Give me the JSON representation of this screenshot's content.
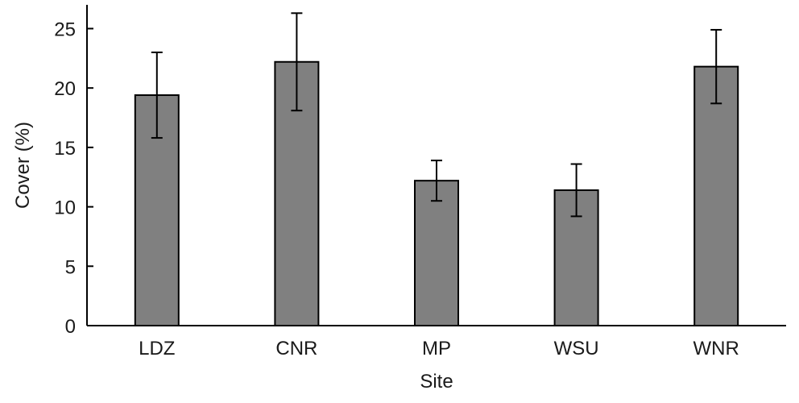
{
  "chart_data": {
    "type": "bar",
    "title": "",
    "xlabel": "Site",
    "ylabel": "Cover (%)",
    "categories": [
      "LDZ",
      "CNR",
      "MP",
      "WSU",
      "WNR"
    ],
    "values": [
      19.4,
      22.2,
      12.2,
      11.4,
      21.8
    ],
    "errors": [
      3.6,
      4.1,
      1.7,
      2.2,
      3.1
    ],
    "ylim": [
      0,
      27
    ],
    "yticks": [
      0,
      5,
      10,
      15,
      20,
      25
    ],
    "grid": false,
    "colors": {
      "bar": "#808080",
      "edge": "#000000"
    }
  }
}
